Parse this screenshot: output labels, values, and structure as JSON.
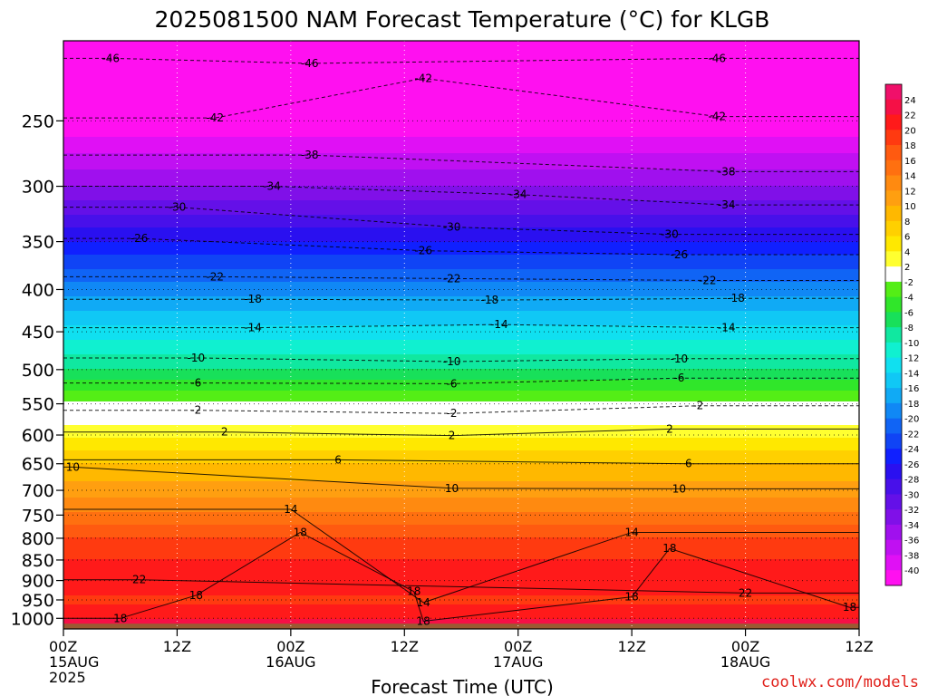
{
  "chart_data": {
    "type": "heatmap",
    "title": "2025081500 NAM Forecast Temperature (°C) for KLGB",
    "xlabel": "Forecast Time (UTC)",
    "ylabel": "",
    "x_ticks": [
      {
        "top": "00Z",
        "mid": "15AUG",
        "bottom": "2025",
        "hour": 0
      },
      {
        "top": "12Z",
        "mid": "",
        "bottom": "",
        "hour": 12
      },
      {
        "top": "00Z",
        "mid": "16AUG",
        "bottom": "",
        "hour": 24
      },
      {
        "top": "12Z",
        "mid": "",
        "bottom": "",
        "hour": 36
      },
      {
        "top": "00Z",
        "mid": "17AUG",
        "bottom": "",
        "hour": 48
      },
      {
        "top": "12Z",
        "mid": "",
        "bottom": "",
        "hour": 60
      },
      {
        "top": "00Z",
        "mid": "18AUG",
        "bottom": "",
        "hour": 72
      },
      {
        "top": "12Z",
        "mid": "",
        "bottom": "",
        "hour": 84
      }
    ],
    "xlim": [
      0,
      84
    ],
    "y_ticks": [
      250,
      300,
      350,
      400,
      450,
      500,
      550,
      600,
      650,
      700,
      750,
      800,
      850,
      900,
      950,
      1000
    ],
    "ylim": [
      1030,
      200
    ],
    "y_scale": "log-pressure",
    "surface_pressure": 1015,
    "colorbar": {
      "labels": [
        "24",
        "22",
        "20",
        "18",
        "16",
        "14",
        "12",
        "10",
        "8",
        "6",
        "4",
        "2",
        "-2",
        "-4",
        "-6",
        "-8",
        "-10",
        "-12",
        "-14",
        "-16",
        "-18",
        "-20",
        "-22",
        "-24",
        "-26",
        "-28",
        "-30",
        "-32",
        "-34",
        "-36",
        "-38",
        "-40"
      ],
      "colors": [
        "#f0106a",
        "#f51046",
        "#ff1a1a",
        "#ff3a10",
        "#ff5a10",
        "#ff7010",
        "#ff8a10",
        "#ff9f10",
        "#ffb800",
        "#ffd000",
        "#ffe800",
        "#ffff30",
        "#ffffff",
        "#54ee16",
        "#30e62a",
        "#18e05a",
        "#10e8a0",
        "#10f0d0",
        "#10e0f0",
        "#10c8f5",
        "#10aaf5",
        "#1088f5",
        "#1064f5",
        "#1044f5",
        "#1020ff",
        "#2a10f0",
        "#4810ea",
        "#6410e8",
        "#8010e8",
        "#a010ee",
        "#c010f2",
        "#e010f5",
        "#ff10f0"
      ]
    },
    "temperature_profile": [
      {
        "p": 1015,
        "t": 23
      },
      {
        "p": 1000,
        "t": 22
      },
      {
        "p": 975,
        "t": 21
      },
      {
        "p": 950,
        "t": 19
      },
      {
        "p": 925,
        "t": 21
      },
      {
        "p": 900,
        "t": 21
      },
      {
        "p": 850,
        "t": 20
      },
      {
        "p": 800,
        "t": 18
      },
      {
        "p": 750,
        "t": 14.5
      },
      {
        "p": 700,
        "t": 11
      },
      {
        "p": 650,
        "t": 8
      },
      {
        "p": 600,
        "t": 3.5
      },
      {
        "p": 560,
        "t": -0.5
      },
      {
        "p": 500,
        "t": -8
      },
      {
        "p": 450,
        "t": -13
      },
      {
        "p": 400,
        "t": -19
      },
      {
        "p": 350,
        "t": -26
      },
      {
        "p": 300,
        "t": -34
      },
      {
        "p": 250,
        "t": -42
      },
      {
        "p": 200,
        "t": -50
      }
    ],
    "contour_labels": [
      {
        "text": "-46",
        "x": 5,
        "p": 210
      },
      {
        "text": "-46",
        "x": 26,
        "p": 213
      },
      {
        "text": "-46",
        "x": 69,
        "p": 210
      },
      {
        "text": "-42",
        "x": 16,
        "p": 248
      },
      {
        "text": "-42",
        "x": 38,
        "p": 222
      },
      {
        "text": "-42",
        "x": 69,
        "p": 247
      },
      {
        "text": "-38",
        "x": 26,
        "p": 275
      },
      {
        "text": "-38",
        "x": 70,
        "p": 288
      },
      {
        "text": "-34",
        "x": 22,
        "p": 300
      },
      {
        "text": "-34",
        "x": 48,
        "p": 307
      },
      {
        "text": "-34",
        "x": 70,
        "p": 316
      },
      {
        "text": "-30",
        "x": 12,
        "p": 318
      },
      {
        "text": "-30",
        "x": 41,
        "p": 336
      },
      {
        "text": "-30",
        "x": 64,
        "p": 343
      },
      {
        "text": "-26",
        "x": 8,
        "p": 347
      },
      {
        "text": "-26",
        "x": 38,
        "p": 359
      },
      {
        "text": "-26",
        "x": 65,
        "p": 363
      },
      {
        "text": "-22",
        "x": 16,
        "p": 386
      },
      {
        "text": "-22",
        "x": 41,
        "p": 388
      },
      {
        "text": "-22",
        "x": 68,
        "p": 390
      },
      {
        "text": "-18",
        "x": 20,
        "p": 411
      },
      {
        "text": "-18",
        "x": 45,
        "p": 412
      },
      {
        "text": "-18",
        "x": 71,
        "p": 410
      },
      {
        "text": "-14",
        "x": 20,
        "p": 445
      },
      {
        "text": "-14",
        "x": 46,
        "p": 441
      },
      {
        "text": "-14",
        "x": 70,
        "p": 445
      },
      {
        "text": "-10",
        "x": 14,
        "p": 484
      },
      {
        "text": "-10",
        "x": 41,
        "p": 489
      },
      {
        "text": "-10",
        "x": 65,
        "p": 485
      },
      {
        "text": "-6",
        "x": 14,
        "p": 519
      },
      {
        "text": "-6",
        "x": 41,
        "p": 520
      },
      {
        "text": "-6",
        "x": 65,
        "p": 512
      },
      {
        "text": "-2",
        "x": 14,
        "p": 560
      },
      {
        "text": "-2",
        "x": 41,
        "p": 565
      },
      {
        "text": "-2",
        "x": 67,
        "p": 553
      },
      {
        "text": "2",
        "x": 17,
        "p": 595
      },
      {
        "text": "2",
        "x": 41,
        "p": 601
      },
      {
        "text": "2",
        "x": 64,
        "p": 590
      },
      {
        "text": "6",
        "x": 29,
        "p": 643
      },
      {
        "text": "6",
        "x": 66,
        "p": 650
      },
      {
        "text": "10",
        "x": 1,
        "p": 656
      },
      {
        "text": "10",
        "x": 41,
        "p": 696
      },
      {
        "text": "10",
        "x": 65,
        "p": 697
      },
      {
        "text": "14",
        "x": 24,
        "p": 738
      },
      {
        "text": "14",
        "x": 60,
        "p": 787
      },
      {
        "text": "18",
        "x": 25,
        "p": 787
      },
      {
        "text": "18",
        "x": 64,
        "p": 823
      },
      {
        "text": "22",
        "x": 8,
        "p": 898
      },
      {
        "text": "22",
        "x": 72,
        "p": 932
      },
      {
        "text": "18",
        "x": 14,
        "p": 938
      },
      {
        "text": "18",
        "x": 37,
        "p": 928
      },
      {
        "text": "18",
        "x": 60,
        "p": 942
      },
      {
        "text": "14",
        "x": 38,
        "p": 957
      },
      {
        "text": "18",
        "x": 6,
        "p": 1000
      },
      {
        "text": "18",
        "x": 38,
        "p": 1008
      },
      {
        "text": "18",
        "x": 83,
        "p": 970
      }
    ],
    "credit": "coolwx.com/models"
  }
}
